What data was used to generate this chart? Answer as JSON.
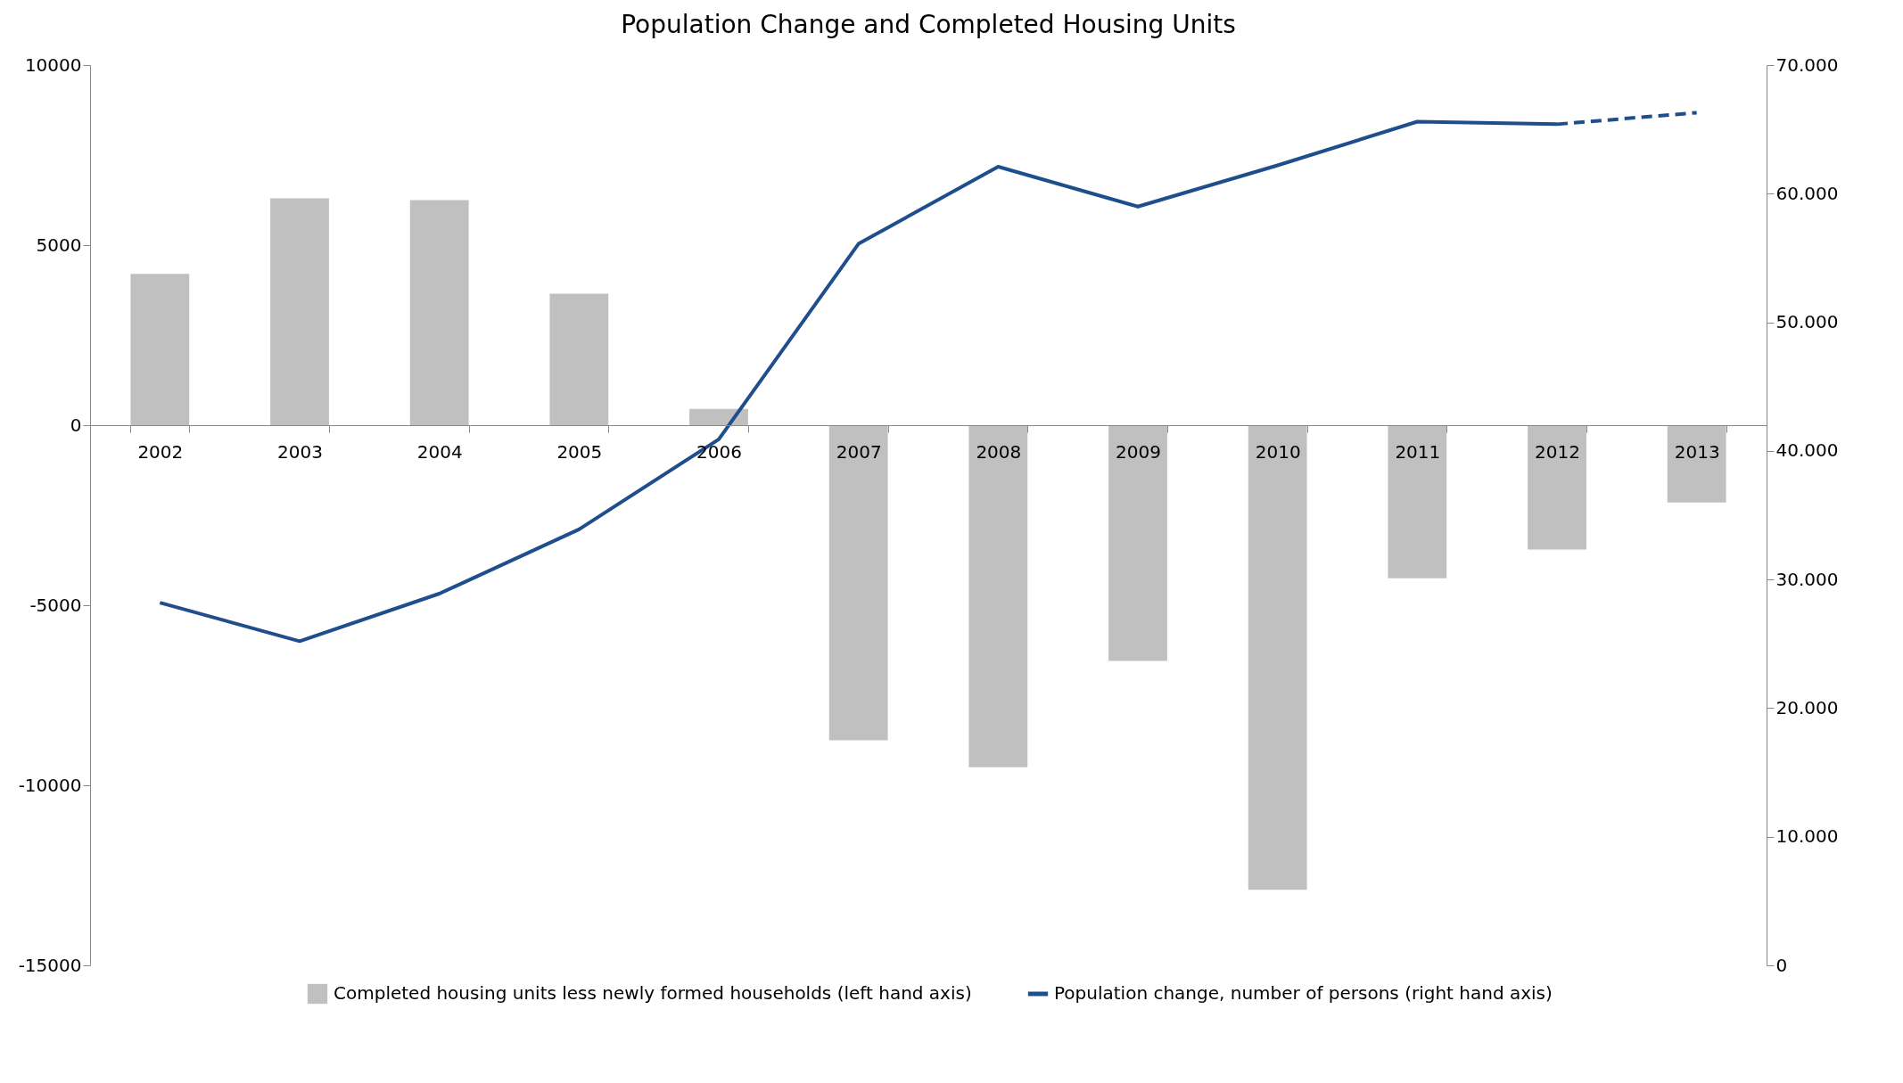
{
  "chart_data": {
    "type": "bar",
    "title": "Population Change and Completed Housing Units",
    "categories": [
      "2002",
      "2003",
      "2004",
      "2005",
      "2006",
      "2007",
      "2008",
      "2009",
      "2010",
      "2011",
      "2012",
      "2013"
    ],
    "series": [
      {
        "name": "Completed housing units less newly formed households (left hand axis)",
        "type": "bar",
        "color": "#c0c0c0",
        "values": [
          4200,
          6300,
          6250,
          3650,
          450,
          -8750,
          -9500,
          -6550,
          -12900,
          -4250,
          -3450,
          -2150
        ]
      },
      {
        "name": "Population change, number of persons (right hand axis)",
        "type": "line",
        "axis": "y2",
        "color": "#1f4e8c",
        "line_style": "solid",
        "values": [
          28200,
          25200,
          28900,
          33900,
          40900,
          56100,
          62100,
          59000,
          62200,
          65600,
          65400,
          null
        ]
      },
      {
        "type": "line",
        "axis": "y2",
        "color": "#1f4e8c",
        "line_style": "dashed",
        "values": [
          null,
          null,
          null,
          null,
          null,
          null,
          null,
          null,
          null,
          null,
          65400,
          66300
        ]
      }
    ],
    "ylim": [
      -15000,
      10000
    ],
    "yticks": [
      -15000,
      -10000,
      -5000,
      0,
      5000,
      10000
    ],
    "y2lim": [
      0,
      70000
    ],
    "y2ticks": [
      0,
      {
        "value": 10000,
        "label": "10.000"
      },
      {
        "value": 20000,
        "label": "20.000"
      },
      {
        "value": 30000,
        "label": "30.000"
      },
      {
        "value": 40000,
        "label": "40.000"
      },
      {
        "value": 50000,
        "label": "50.000"
      },
      {
        "value": 60000,
        "label": "60.000"
      },
      {
        "value": 70000,
        "label": "70.000"
      }
    ],
    "grid": false,
    "legend": "bottom",
    "marker": "none"
  }
}
